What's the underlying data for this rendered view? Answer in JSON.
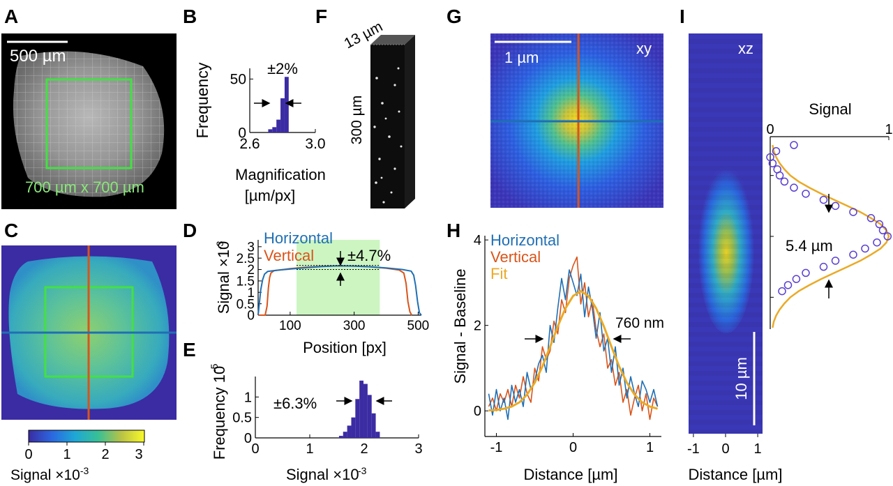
{
  "panels": {
    "A": "A",
    "B": "B",
    "C": "C",
    "D": "D",
    "E": "E",
    "F": "F",
    "G": "G",
    "H": "H",
    "I": "I"
  },
  "panelA": {
    "scale_label": "500 µm",
    "roi_label": "700 µm x 700 µm",
    "roi_color": "#44e044"
  },
  "colorbar": {
    "ticks": [
      "0",
      "1",
      "2",
      "3"
    ],
    "label_main": "Signal ×10",
    "label_exp": "-3"
  },
  "panelF": {
    "depth_label": "13 µm",
    "height_label": "300 µm"
  },
  "panelG": {
    "scale_label": "1 µm",
    "plane_label": "xy"
  },
  "panelI": {
    "plane_label": "xz",
    "scale_label": "10 µm",
    "fwhm_label": "5.4 µm"
  },
  "colors": {
    "horizontal": "#1f6fb4",
    "vertical": "#d9541a",
    "fit": "#eaaa26",
    "bar": "#3b2ca3",
    "shade": "#ccf5c2"
  },
  "chart_data": [
    {
      "id": "B",
      "type": "bar",
      "xlabel": "Magnification",
      "xlabel2": "[µm/px]",
      "ylabel": "Frequency",
      "xlim": [
        2.6,
        3.0
      ],
      "ylim": [
        0,
        60
      ],
      "xticks": [
        2.6,
        3.0
      ],
      "xtick_labels": [
        "2.6",
        "3.0"
      ],
      "yticks": [
        0,
        50
      ],
      "ytick_labels": [
        "0",
        "50"
      ],
      "annotation": "±2%",
      "bins": [
        2.725,
        2.75,
        2.775,
        2.8,
        2.825
      ],
      "values": [
        3,
        5,
        12,
        32,
        52
      ],
      "bin_width": 0.025
    },
    {
      "id": "D",
      "type": "line",
      "xlabel": "Position [px]",
      "ylabel": "Signal ×10",
      "ylabel_exp": "-3",
      "xlim": [
        0,
        510
      ],
      "ylim": [
        0,
        3.3
      ],
      "xticks": [
        100,
        300,
        500
      ],
      "xtick_labels": [
        "100",
        "300",
        "500"
      ],
      "yticks": [
        0,
        0.5,
        1,
        1.5,
        2,
        2.5,
        3
      ],
      "ytick_labels": [
        "0",
        "0.5",
        "1",
        "1.5",
        "2",
        "2.5",
        "3"
      ],
      "annotation": "±4.7%",
      "shade": [
        120,
        380
      ],
      "series": [
        {
          "name": "Horizontal",
          "x": [
            0,
            8,
            14,
            20,
            30,
            60,
            100,
            150,
            200,
            250,
            300,
            350,
            400,
            450,
            478,
            486,
            492,
            498,
            504,
            510
          ],
          "y": [
            0,
            1.1,
            1.55,
            1.8,
            1.92,
            1.97,
            2.02,
            2.08,
            2.13,
            2.16,
            2.15,
            2.12,
            2.07,
            2.0,
            1.93,
            1.75,
            1.3,
            0.6,
            0.1,
            0
          ]
        },
        {
          "name": "Vertical",
          "x": [
            0,
            10,
            22,
            28,
            32,
            36,
            40,
            50,
            100,
            150,
            200,
            250,
            300,
            350,
            400,
            440,
            455,
            462,
            468,
            474,
            480
          ],
          "y": [
            0,
            0,
            0,
            0.4,
            1.2,
            1.65,
            1.85,
            1.95,
            2.04,
            2.1,
            2.14,
            2.16,
            2.15,
            2.12,
            2.06,
            1.98,
            1.85,
            1.4,
            0.6,
            0.15,
            0
          ]
        }
      ]
    },
    {
      "id": "E",
      "type": "bar",
      "xlabel": "Signal ×10",
      "xlabel_exp": "-3",
      "ylabel": "Frequency 10",
      "ylabel_exp": "-5",
      "xlim": [
        0,
        3
      ],
      "ylim": [
        0,
        1.5
      ],
      "xticks": [
        0,
        1,
        2,
        3
      ],
      "xtick_labels": [
        "0",
        "1",
        "2",
        "3"
      ],
      "yticks": [
        0,
        0.5,
        1
      ],
      "ytick_labels": [
        "0",
        "0.5",
        "1"
      ],
      "annotation": "±6.3%",
      "bins": [
        1.575,
        1.65,
        1.725,
        1.8,
        1.875,
        1.95,
        2.025,
        2.1,
        2.175,
        2.25
      ],
      "values": [
        0.05,
        0.15,
        0.3,
        0.5,
        0.95,
        1.4,
        1.32,
        1.05,
        0.6,
        0.15
      ],
      "bin_width": 0.075
    },
    {
      "id": "H",
      "type": "line",
      "xlabel": "Distance [µm]",
      "ylabel": "Signal - Baseline",
      "xlim": [
        -1.15,
        1.15
      ],
      "ylim": [
        -0.6,
        4.1
      ],
      "xticks": [
        -1,
        0,
        1
      ],
      "xtick_labels": [
        "-1",
        "0",
        "1"
      ],
      "yticks": [
        0,
        2,
        4
      ],
      "ytick_labels": [
        "0",
        "2",
        "4"
      ],
      "annotation": "760 nm",
      "series": [
        {
          "name": "Horizontal",
          "x": [
            -1.1,
            -1.05,
            -1,
            -0.95,
            -0.9,
            -0.85,
            -0.8,
            -0.75,
            -0.7,
            -0.65,
            -0.6,
            -0.55,
            -0.5,
            -0.45,
            -0.4,
            -0.35,
            -0.3,
            -0.25,
            -0.2,
            -0.15,
            -0.1,
            -0.05,
            0,
            0.05,
            0.1,
            0.15,
            0.2,
            0.25,
            0.3,
            0.35,
            0.4,
            0.45,
            0.5,
            0.55,
            0.6,
            0.65,
            0.7,
            0.75,
            0.8,
            0.85,
            0.9,
            0.95,
            1,
            1.05,
            1.1
          ],
          "y": [
            0.4,
            -0.1,
            0.5,
            0.0,
            0.3,
            -0.2,
            0.6,
            0.2,
            0.5,
            0.1,
            0.9,
            0.5,
            0.7,
            1.1,
            1.3,
            0.9,
            2.0,
            1.6,
            2.4,
            3.1,
            2.6,
            3.3,
            3.0,
            2.7,
            3.2,
            2.2,
            2.9,
            2.4,
            1.7,
            2.3,
            1.4,
            1.7,
            0.9,
            1.5,
            0.6,
            1.0,
            0.3,
            0.8,
            0.4,
            0.1,
            0.7,
            0.5,
            0.2,
            0.5,
            0.1
          ]
        },
        {
          "name": "Vertical",
          "x": [
            -1.1,
            -1.05,
            -1,
            -0.95,
            -0.9,
            -0.85,
            -0.8,
            -0.75,
            -0.7,
            -0.65,
            -0.6,
            -0.55,
            -0.5,
            -0.45,
            -0.4,
            -0.35,
            -0.3,
            -0.25,
            -0.2,
            -0.15,
            -0.1,
            -0.05,
            0,
            0.05,
            0.1,
            0.15,
            0.2,
            0.25,
            0.3,
            0.35,
            0.4,
            0.45,
            0.5,
            0.55,
            0.6,
            0.65,
            0.7,
            0.75,
            0.8,
            0.85,
            0.9,
            0.95,
            1,
            1.05,
            1.1
          ],
          "y": [
            0.1,
            0.3,
            0.0,
            0.4,
            0.2,
            0.5,
            0.1,
            0.6,
            0.3,
            0.8,
            0.4,
            0.2,
            1.0,
            0.7,
            1.5,
            1.2,
            1.4,
            2.1,
            1.8,
            2.6,
            2.3,
            3.1,
            3.4,
            3.6,
            2.5,
            3.0,
            2.2,
            2.6,
            1.9,
            1.5,
            1.8,
            1.0,
            1.2,
            0.6,
            0.9,
            0.2,
            0.5,
            -0.1,
            0.3,
            0.6,
            0.0,
            0.4,
            -0.2,
            0.3,
            0.1
          ]
        },
        {
          "name": "Fit",
          "x": [
            -1.1,
            -1,
            -0.9,
            -0.8,
            -0.7,
            -0.6,
            -0.5,
            -0.4,
            -0.3,
            -0.2,
            -0.1,
            0,
            0.1,
            0.2,
            0.3,
            0.4,
            0.5,
            0.6,
            0.7,
            0.8,
            0.9,
            1,
            1.1
          ],
          "y": [
            0.01,
            0.02,
            0.05,
            0.1,
            0.2,
            0.38,
            0.66,
            1.04,
            1.5,
            1.98,
            2.4,
            2.69,
            2.8,
            2.69,
            2.4,
            1.98,
            1.5,
            1.04,
            0.66,
            0.38,
            0.2,
            0.1,
            0.05
          ]
        }
      ]
    },
    {
      "id": "I",
      "type": "scatter",
      "title": "Signal",
      "xlim": [
        0,
        1
      ],
      "xticks": [
        0,
        1
      ],
      "xtick_labels": [
        "0",
        "1"
      ],
      "series": [
        {
          "name": "Fit",
          "y": [
            -15,
            -14,
            -13,
            -12,
            -11,
            -10,
            -9,
            -8,
            -7,
            -6,
            -5,
            -4,
            -3,
            -2,
            -1,
            0,
            1,
            2,
            3,
            4,
            5,
            6,
            7,
            8,
            9,
            10,
            11,
            12,
            13,
            14,
            15
          ],
          "x": [
            0.02,
            0.03,
            0.05,
            0.08,
            0.12,
            0.17,
            0.24,
            0.33,
            0.43,
            0.54,
            0.65,
            0.76,
            0.85,
            0.93,
            0.98,
            1.0,
            0.98,
            0.93,
            0.85,
            0.76,
            0.65,
            0.54,
            0.43,
            0.33,
            0.24,
            0.17,
            0.12,
            0.08,
            0.05,
            0.03,
            0.02
          ]
        },
        {
          "name": "Data",
          "y": [
            -15,
            -14,
            -13,
            -12,
            -11,
            -10,
            -9,
            -8,
            -7,
            -6,
            -5,
            -4,
            -3,
            -2,
            -1,
            0,
            1,
            2,
            3,
            4,
            5,
            6,
            7,
            8,
            9
          ],
          "x": [
            0.2,
            0.05,
            0.0,
            0.02,
            0.06,
            0.08,
            0.12,
            0.2,
            0.3,
            0.45,
            0.55,
            0.7,
            0.85,
            0.92,
            0.95,
            0.99,
            0.9,
            0.8,
            0.7,
            0.55,
            0.45,
            0.3,
            0.22,
            0.15,
            0.1
          ]
        }
      ]
    }
  ]
}
